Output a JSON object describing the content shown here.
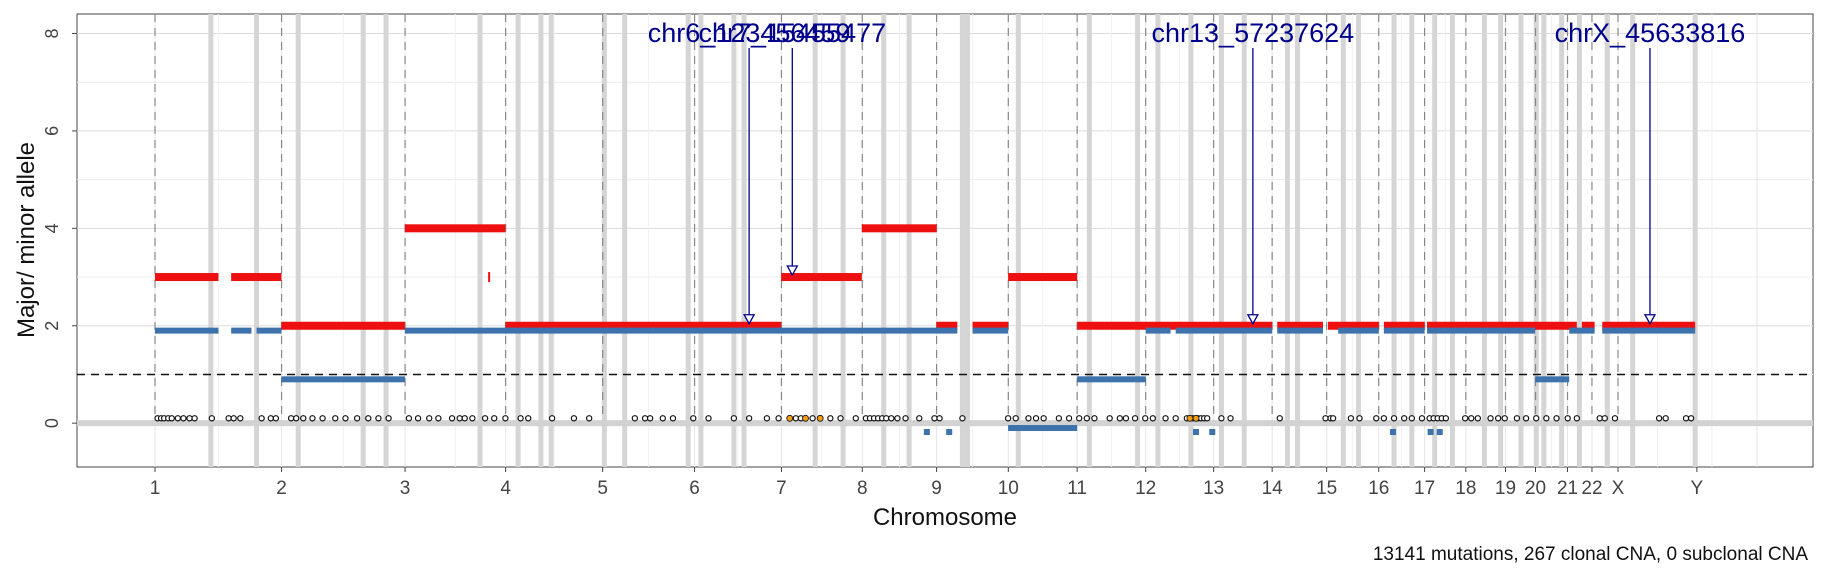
{
  "chart_data": {
    "type": "scatter",
    "xlabel": "Chromosome",
    "ylabel": "Major/ minor allele",
    "caption": "13141 mutations, 267 clonal CNA, 0 subclonal CNA",
    "ylim": [
      -0.9,
      8.4
    ],
    "yticks": [
      0,
      2,
      4,
      6,
      8
    ],
    "grid": true,
    "legend": "none",
    "genome_length": 3095.69,
    "chromosomes": [
      {
        "label": "1",
        "start": 0
      },
      {
        "label": "2",
        "start": 249.25
      },
      {
        "label": "3",
        "start": 492.45
      },
      {
        "label": "4",
        "start": 690.47
      },
      {
        "label": "5",
        "start": 881.63
      },
      {
        "label": "6",
        "start": 1062.55
      },
      {
        "label": "7",
        "start": 1233.67
      },
      {
        "label": "8",
        "start": 1392.81
      },
      {
        "label": "9",
        "start": 1539.18
      },
      {
        "label": "10",
        "start": 1680.39
      },
      {
        "label": "11",
        "start": 1815.93
      },
      {
        "label": "12",
        "start": 1950.94
      },
      {
        "label": "13",
        "start": 2084.79
      },
      {
        "label": "14",
        "start": 2199.96
      },
      {
        "label": "15",
        "start": 2307.31
      },
      {
        "label": "16",
        "start": 2409.84
      },
      {
        "label": "17",
        "start": 2500.19
      },
      {
        "label": "18",
        "start": 2581.39
      },
      {
        "label": "19",
        "start": 2659.47
      },
      {
        "label": "20",
        "start": 2718.6
      },
      {
        "label": "21",
        "start": 2781.63
      },
      {
        "label": "22",
        "start": 2829.76
      },
      {
        "label": "X",
        "start": 2881.07
      },
      {
        "label": "Y",
        "start": 3036.34
      }
    ],
    "threshold_line": 1,
    "segments_major": [
      {
        "x": [
          0,
          125
        ],
        "y": 3
      },
      {
        "x": [
          150,
          249
        ],
        "y": 3
      },
      {
        "x": [
          249,
          492
        ],
        "y": 2
      },
      {
        "x": [
          492,
          690
        ],
        "y": 4
      },
      {
        "x": [
          690,
          1233
        ],
        "y": 2
      },
      {
        "x": [
          1233,
          1392
        ],
        "y": 3
      },
      {
        "x": [
          1392,
          1539
        ],
        "y": 4
      },
      {
        "x": [
          1539,
          1580
        ],
        "y": 2
      },
      {
        "x": [
          1610,
          1680
        ],
        "y": 2
      },
      {
        "x": [
          1680,
          1816
        ],
        "y": 3
      },
      {
        "x": [
          1816,
          2200
        ],
        "y": 2
      },
      {
        "x": [
          2210,
          2300
        ],
        "y": 2
      },
      {
        "x": [
          2310,
          2410
        ],
        "y": 2
      },
      {
        "x": [
          2420,
          2500
        ],
        "y": 2
      },
      {
        "x": [
          2505,
          2800
        ],
        "y": 2
      },
      {
        "x": [
          2810,
          2835
        ],
        "y": 2
      },
      {
        "x": [
          2850,
          3033
        ],
        "y": 2
      }
    ],
    "segments_minor": [
      {
        "x": [
          0,
          125
        ],
        "y": 1.9
      },
      {
        "x": [
          150,
          190
        ],
        "y": 1.9
      },
      {
        "x": [
          200,
          249
        ],
        "y": 1.9
      },
      {
        "x": [
          249,
          492
        ],
        "y": 0.9
      },
      {
        "x": [
          492,
          1539
        ],
        "y": 1.9
      },
      {
        "x": [
          1539,
          1580
        ],
        "y": 1.9
      },
      {
        "x": [
          1610,
          1680
        ],
        "y": 1.9
      },
      {
        "x": [
          1680,
          1816
        ],
        "y": -0.1
      },
      {
        "x": [
          1816,
          1951
        ],
        "y": 0.9
      },
      {
        "x": [
          1951,
          2000
        ],
        "y": 1.9
      },
      {
        "x": [
          2010,
          2200
        ],
        "y": 1.9
      },
      {
        "x": [
          2210,
          2300
        ],
        "y": 1.9
      },
      {
        "x": [
          2330,
          2410
        ],
        "y": 1.9
      },
      {
        "x": [
          2420,
          2500
        ],
        "y": 1.9
      },
      {
        "x": [
          2505,
          2718
        ],
        "y": 1.9
      },
      {
        "x": [
          2718,
          2785
        ],
        "y": 0.9
      },
      {
        "x": [
          2785,
          2835
        ],
        "y": 1.9
      },
      {
        "x": [
          2850,
          3033
        ],
        "y": 1.9
      }
    ],
    "mutations": [
      5,
      12,
      18,
      26,
      33,
      45,
      56,
      68,
      78,
      112,
      145,
      155,
      168,
      210,
      228,
      238,
      268,
      278,
      292,
      310,
      330,
      355,
      375,
      398,
      420,
      440,
      460,
      500,
      518,
      540,
      558,
      585,
      600,
      610,
      625,
      650,
      668,
      690,
      720,
      735,
      782,
      825,
      855,
      945,
      965,
      975,
      1000,
      1020,
      1060,
      1090,
      1140,
      1170,
      1205,
      1228,
      1250,
      1262,
      1272,
      1281,
      1295,
      1310,
      1330,
      1350,
      1380,
      1400,
      1408,
      1416,
      1424,
      1432,
      1440,
      1450,
      1462,
      1478,
      1505,
      1535,
      1545,
      1590,
      1680,
      1695,
      1720,
      1735,
      1750,
      1780,
      1800,
      1820,
      1835,
      1850,
      1880,
      1900,
      1912,
      1930,
      1950,
      1965,
      1990,
      2010,
      2032,
      2044,
      2054,
      2060,
      2066,
      2072,
      2100,
      2118,
      2215,
      2305,
      2315,
      2320,
      2355,
      2372,
      2405,
      2420,
      2440,
      2460,
      2475,
      2495,
      2510,
      2518,
      2526,
      2534,
      2542,
      2580,
      2592,
      2605,
      2630,
      2645,
      2658,
      2682,
      2700,
      2720,
      2740,
      2760,
      2782,
      2800,
      2845,
      2855,
      2875,
      2962,
      2975,
      3015,
      3025
    ],
    "mutations_highlight": [
      1250,
      1281,
      1310,
      2038,
      2050
    ],
    "minor_ticks": [
      1520,
      1564,
      2050,
      2082,
      2438,
      2512,
      2530
    ],
    "driver_labels": [
      {
        "text": "chr6_123456459",
        "x": 1170,
        "y": 2
      },
      {
        "text": "chr7_15455477",
        "x": 1255,
        "y": 3
      },
      {
        "text": "chr13_57237624",
        "x": 2162,
        "y": 2
      },
      {
        "text": "chrX_45633816",
        "x": 2944,
        "y": 2
      }
    ],
    "bands": [
      110,
      200,
      282,
      410,
      455,
      640,
      715,
      760,
      780,
      885,
      925,
      1050,
      1075,
      1140,
      1160,
      1300,
      1355,
      1435,
      1485,
      1590,
      1600,
      1700,
      1840,
      1935,
      1975,
      2040,
      2100,
      2145,
      2230,
      2250,
      2340,
      2370,
      2440,
      2475,
      2520,
      2555,
      2618,
      2650,
      2690,
      2720,
      2735,
      2770,
      2805,
      2860,
      2910,
      3033
    ],
    "colors": {
      "major": "#ee1010",
      "minor": "#3d72ad",
      "driver": "#00008b",
      "highlight": "#f39c12",
      "band": "#d5d5d5"
    }
  }
}
